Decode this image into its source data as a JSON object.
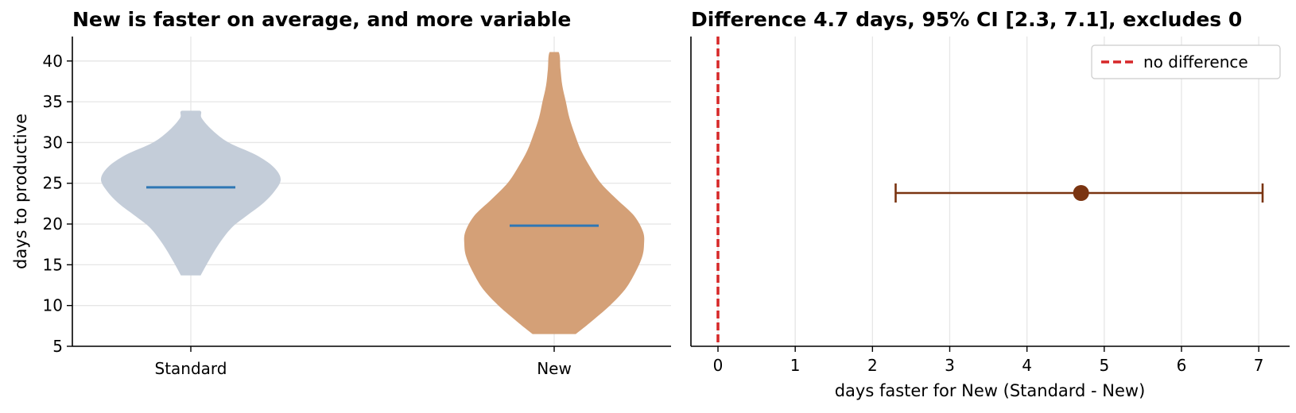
{
  "colors": {
    "standard_violin": "#c4cdd9",
    "new_violin": "#d4a077",
    "median_line": "#2f77b4",
    "estimate": "#7a3411",
    "reference_line": "#d62728",
    "grid": "#e6e6e6"
  },
  "chart_data": [
    {
      "type": "violin",
      "title": "New is faster on average, and more variable",
      "xlabel": "",
      "ylabel": "days to productive",
      "categories": [
        "Standard",
        "New"
      ],
      "ylim": [
        5,
        43
      ],
      "yticks": [
        5,
        10,
        15,
        20,
        25,
        30,
        35,
        40
      ],
      "grid": "both",
      "series": [
        {
          "category": "Standard",
          "min": 13.7,
          "max": 33.9,
          "center_line": 24.5,
          "density_profile": [
            [
              13.7,
              0.11
            ],
            [
              15.5,
              0.2
            ],
            [
              17.5,
              0.31
            ],
            [
              19.5,
              0.45
            ],
            [
              21,
              0.62
            ],
            [
              22.5,
              0.8
            ],
            [
              24,
              0.93
            ],
            [
              25.5,
              1.0
            ],
            [
              27,
              0.92
            ],
            [
              28.5,
              0.72
            ],
            [
              30,
              0.42
            ],
            [
              31.5,
              0.24
            ],
            [
              33,
              0.12
            ],
            [
              33.9,
              0.1
            ]
          ]
        },
        {
          "category": "New",
          "min": 6.5,
          "max": 41.1,
          "center_line": 19.8,
          "density_profile": [
            [
              6.5,
              0.24
            ],
            [
              8,
              0.41
            ],
            [
              10,
              0.62
            ],
            [
              12,
              0.79
            ],
            [
              14,
              0.9
            ],
            [
              16,
              0.98
            ],
            [
              17.5,
              1.0
            ],
            [
              19,
              0.99
            ],
            [
              21,
              0.89
            ],
            [
              23,
              0.7
            ],
            [
              25,
              0.52
            ],
            [
              27,
              0.4
            ],
            [
              29,
              0.3
            ],
            [
              31,
              0.23
            ],
            [
              33,
              0.17
            ],
            [
              35,
              0.13
            ],
            [
              37,
              0.09
            ],
            [
              39,
              0.07
            ],
            [
              41.1,
              0.05
            ]
          ]
        }
      ]
    },
    {
      "type": "errorbar",
      "title": "Difference 4.7 days, 95% CI [2.3, 7.1], excludes 0",
      "xlabel": "days faster for New (Standard - New)",
      "ylabel": "",
      "xlim": [
        -0.35,
        7.4
      ],
      "xticks": [
        0,
        1,
        2,
        3,
        4,
        5,
        6,
        7
      ],
      "grid": "x",
      "estimate": 4.7,
      "ci": [
        2.3,
        7.05
      ],
      "reference_x": 0,
      "legend": {
        "position": "top-right",
        "entries": [
          "no difference"
        ]
      }
    }
  ]
}
